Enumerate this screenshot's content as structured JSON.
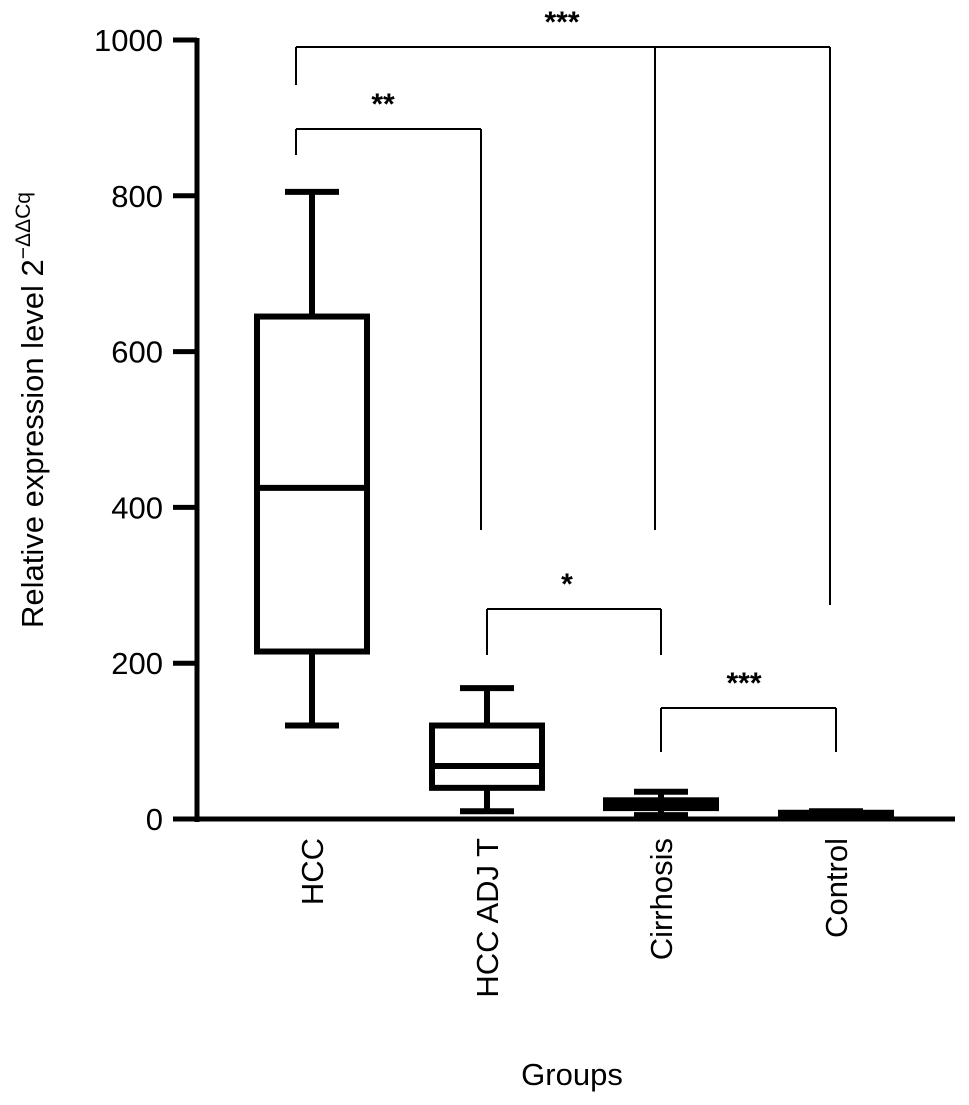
{
  "chart_data": {
    "type": "box",
    "xlabel": "Groups",
    "ylabel_main": "Relative expression level 2",
    "ylabel_sup": "−ΔΔCq",
    "ylim": [
      0,
      1000
    ],
    "yticks": [
      "0",
      "200",
      "400",
      "600",
      "800",
      "1000"
    ],
    "grid": false,
    "categories": [
      "HCC",
      "HCC ADJ  T",
      "Cirrhosis",
      "Control"
    ],
    "boxes": [
      {
        "category": "HCC",
        "min": 120,
        "q1": 215,
        "median": 425,
        "q3": 645,
        "max": 805
      },
      {
        "category": "HCC ADJ  T",
        "min": 10,
        "q1": 40,
        "median": 68,
        "q3": 120,
        "max": 168
      },
      {
        "category": "Cirrhosis",
        "min": 5,
        "q1": 14,
        "median": 20,
        "q3": 24,
        "max": 35
      },
      {
        "category": "Control",
        "min": 2,
        "q1": 4,
        "median": 6,
        "q3": 8,
        "max": 10
      }
    ],
    "comparisons": [
      {
        "groups": [
          "HCC",
          "HCC ADJ  T"
        ],
        "label": "**"
      },
      {
        "groups": [
          "HCC",
          "Control"
        ],
        "label": "***"
      },
      {
        "groups": [
          "HCC ADJ  T",
          "Cirrhosis"
        ],
        "label": "*"
      },
      {
        "groups": [
          "Cirrhosis",
          "Control"
        ],
        "label": "***"
      }
    ]
  }
}
